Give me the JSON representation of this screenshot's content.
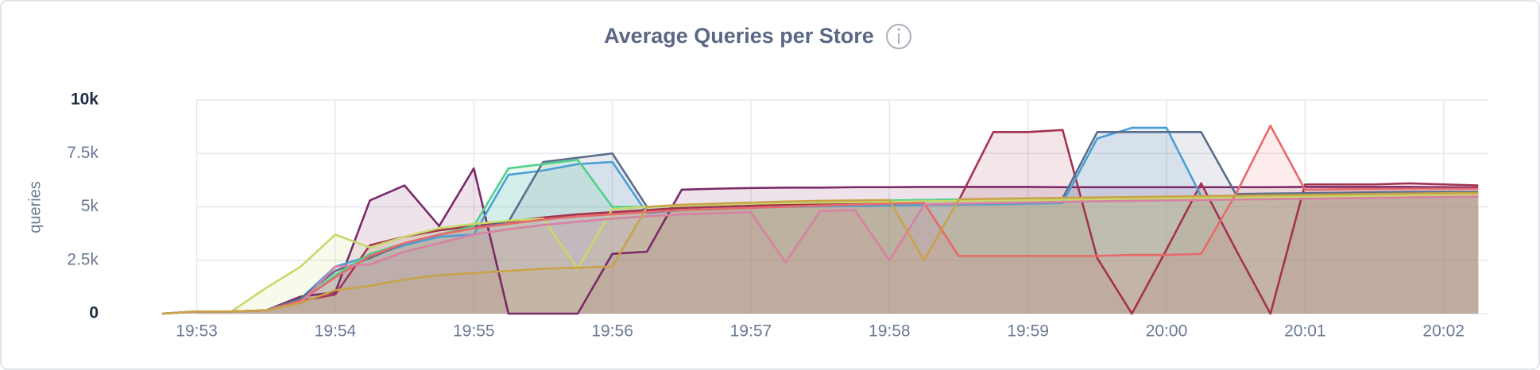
{
  "chart_data": {
    "type": "area",
    "title": "Average Queries per Store",
    "y_label": "queries",
    "x": [
      1192.75,
      1193,
      1193.25,
      1193.5,
      1193.75,
      1194,
      1194.25,
      1194.5,
      1194.75,
      1195,
      1195.25,
      1195.5,
      1195.75,
      1196,
      1196.25,
      1196.5,
      1196.75,
      1197,
      1197.25,
      1197.5,
      1197.75,
      1198,
      1198.25,
      1198.5,
      1198.75,
      1199,
      1199.25,
      1199.5,
      1199.75,
      1200,
      1200.25,
      1200.5,
      1200.75,
      1201,
      1201.25,
      1201.5,
      1201.75,
      1202,
      1202.25
    ],
    "xlim": [
      1192.75,
      1202.3
    ],
    "xticks": [
      {
        "value": 1193,
        "label": "19:53"
      },
      {
        "value": 1194,
        "label": "19:54"
      },
      {
        "value": 1195,
        "label": "19:55"
      },
      {
        "value": 1196,
        "label": "19:56"
      },
      {
        "value": 1197,
        "label": "19:57"
      },
      {
        "value": 1198,
        "label": "19:58"
      },
      {
        "value": 1199,
        "label": "19:59"
      },
      {
        "value": 1200,
        "label": "20:00"
      },
      {
        "value": 1201,
        "label": "20:01"
      },
      {
        "value": 1202,
        "label": "20:02"
      }
    ],
    "ylim": [
      0,
      10000
    ],
    "yticks": [
      0,
      {
        "value": 2500,
        "label": "2.5k"
      },
      {
        "value": 5000,
        "label": "5k"
      },
      {
        "value": 7500,
        "label": "7.5k"
      },
      {
        "value": 10000,
        "label": "10k"
      }
    ],
    "grid": true,
    "series": [
      {
        "color": "#7a2a68",
        "values": [
          0,
          100,
          100,
          150,
          800,
          1000,
          5300,
          6000,
          4100,
          6800,
          0,
          0,
          0,
          2800,
          2900,
          5800,
          5850,
          5880,
          5900,
          5900,
          5920,
          5920,
          5930,
          5930,
          5930,
          5930,
          5920,
          5920,
          5920,
          5920,
          5920,
          5920,
          5920,
          5930,
          5930,
          5930,
          5930,
          5920,
          5900
        ]
      },
      {
        "color": "#a3334f",
        "values": [
          0,
          100,
          100,
          150,
          600,
          900,
          3200,
          3600,
          3900,
          4100,
          4300,
          4500,
          4650,
          4750,
          4850,
          4950,
          5000,
          5050,
          5100,
          5150,
          5200,
          5230,
          5260,
          5290,
          8500,
          8500,
          8600,
          2600,
          0,
          3000,
          6100,
          3000,
          0,
          6050,
          6050,
          6050,
          6100,
          6050,
          6000
        ]
      },
      {
        "color": "#4b9fd5",
        "values": [
          0,
          100,
          100,
          150,
          700,
          2200,
          2700,
          3200,
          3600,
          3700,
          6500,
          6700,
          7000,
          7100,
          4700,
          4850,
          4900,
          4950,
          5000,
          5020,
          5040,
          5060,
          5080,
          5100,
          5120,
          5150,
          5180,
          8200,
          8700,
          8700,
          5500,
          5520,
          5540,
          5560,
          5580,
          5600,
          5620,
          5640,
          5650
        ]
      },
      {
        "color": "#5a6e8c",
        "values": [
          0,
          100,
          100,
          150,
          700,
          2000,
          2600,
          3300,
          3700,
          4000,
          4300,
          7100,
          7300,
          7500,
          5000,
          5050,
          5100,
          5150,
          5200,
          5230,
          5260,
          5290,
          5320,
          5340,
          5360,
          5380,
          5400,
          8500,
          8500,
          8500,
          8500,
          5600,
          5620,
          5640,
          5660,
          5680,
          5700,
          5700,
          5700
        ]
      },
      {
        "color": "#4fd18b",
        "values": [
          0,
          100,
          100,
          150,
          600,
          1800,
          2800,
          3300,
          3700,
          4100,
          6800,
          7000,
          7200,
          5000,
          5000,
          5050,
          5100,
          5150,
          5200,
          5250,
          5280,
          5300,
          5320,
          5340,
          5360,
          5380,
          5400,
          5420,
          5440,
          5460,
          5480,
          5500,
          5520,
          5540,
          5560,
          5580,
          5600,
          5610,
          5620
        ]
      },
      {
        "color": "#c8d96a",
        "values": [
          0,
          100,
          100,
          1200,
          2200,
          3700,
          3100,
          3600,
          4000,
          4200,
          4350,
          4450,
          2100,
          4900,
          5000,
          5050,
          5100,
          5150,
          5180,
          5200,
          5220,
          5240,
          5260,
          5280,
          5300,
          5320,
          5340,
          5360,
          5380,
          5400,
          5420,
          5440,
          5460,
          5480,
          5500,
          5520,
          5540,
          5560,
          5580
        ]
      },
      {
        "color": "#e8696b",
        "values": [
          0,
          100,
          100,
          150,
          600,
          1700,
          2700,
          3300,
          3700,
          4000,
          4200,
          4400,
          4550,
          4650,
          4750,
          4850,
          4900,
          4950,
          5000,
          5050,
          5100,
          5150,
          5180,
          2700,
          2700,
          2700,
          2700,
          2700,
          2750,
          2750,
          2800,
          5600,
          8800,
          5800,
          5820,
          5840,
          5850,
          5850,
          5850
        ]
      },
      {
        "color": "#d781a3",
        "values": [
          0,
          100,
          100,
          150,
          500,
          2200,
          2300,
          2900,
          3300,
          3700,
          3950,
          4150,
          4300,
          4450,
          4550,
          4650,
          4700,
          4750,
          2400,
          4800,
          4850,
          2500,
          5100,
          5150,
          5180,
          5200,
          5230,
          5260,
          5280,
          5300,
          5320,
          5340,
          5360,
          5380,
          5400,
          5420,
          5440,
          5460,
          5480
        ]
      },
      {
        "color": "#c9a24a",
        "values": [
          0,
          100,
          100,
          150,
          500,
          1100,
          1300,
          1600,
          1800,
          1900,
          2000,
          2100,
          2150,
          2200,
          5000,
          5100,
          5150,
          5200,
          5250,
          5280,
          5300,
          5320,
          2500,
          5350,
          5380,
          5400,
          5420,
          5440,
          5460,
          5480,
          5500,
          5520,
          5540,
          5560,
          5580,
          5600,
          5620,
          5640,
          5650
        ]
      }
    ]
  }
}
